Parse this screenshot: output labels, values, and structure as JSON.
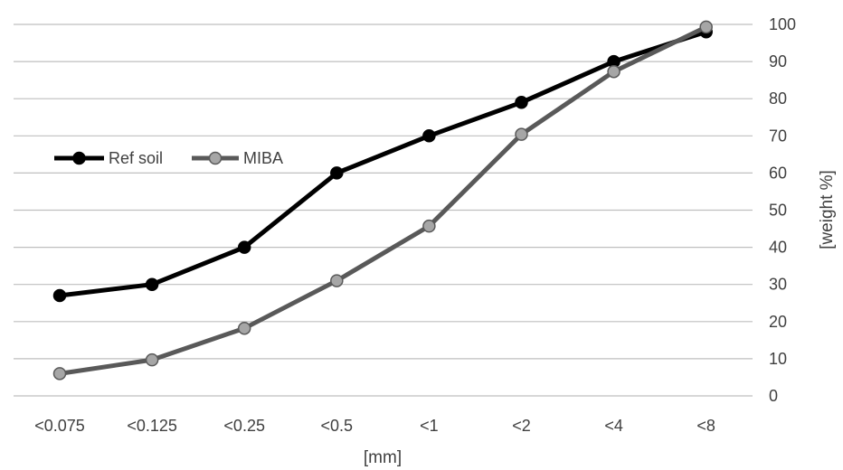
{
  "chart_data": {
    "type": "line",
    "categories": [
      "<0.075",
      "<0.125",
      "<0.25",
      "<0.5",
      "<1",
      "<2",
      "<4",
      "<8"
    ],
    "series": [
      {
        "name": "Ref soil",
        "values": [
          27,
          30,
          40,
          60,
          70,
          79,
          90,
          98
        ],
        "line_color": "#000000",
        "marker_color": "#000000"
      },
      {
        "name": "MIBA",
        "values": [
          6,
          9.7,
          18.2,
          31,
          45.7,
          70.4,
          87.3,
          99.3
        ],
        "line_color": "#595959",
        "marker_color": "#a6a6a6"
      }
    ],
    "xlabel": "[mm]",
    "ylabel": "[weight %]",
    "ylim": [
      0,
      100
    ],
    "yticks": [
      0,
      10,
      20,
      30,
      40,
      50,
      60,
      70,
      80,
      90,
      100
    ],
    "y_axis_position": "right",
    "grid": true,
    "legend_position": "left-middle",
    "grid_color": "#bfbfbf"
  }
}
